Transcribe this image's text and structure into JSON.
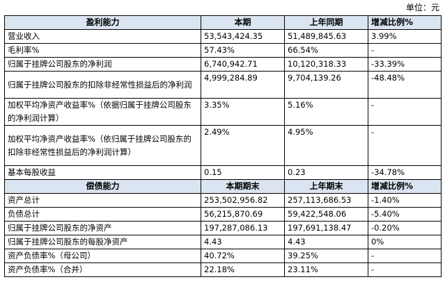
{
  "unit_label": "单位：元",
  "section1": {
    "headers": [
      "盈利能力",
      "本期",
      "上年同期",
      "增减比例%"
    ],
    "rows": [
      {
        "label": "营业收入",
        "current": "53,543,424.35",
        "previous": "51,489,845.63",
        "change": "3.99%"
      },
      {
        "label": "毛利率%",
        "current": "57.43%",
        "previous": "66.54%",
        "change": "-"
      },
      {
        "label": "归属于挂牌公司股东的净利润",
        "current": "6,740,942.71",
        "previous": "10,120,318.33",
        "change": "-33.39%"
      },
      {
        "label": "归属于挂牌公司股东的扣除非经常性损益后的净利润",
        "current": "4,999,284.89",
        "previous": "9,704,139.26",
        "change": "-48.48%"
      },
      {
        "label": "加权平均净资产收益率%（依据归属于挂牌公司股东的净利润计算）",
        "current": "3.35%",
        "previous": "5.16%",
        "change": "-"
      },
      {
        "label": "加权平均净资产收益率%（依归属于挂牌公司股东的扣除非经常性损益后的净利润计算）",
        "current": "2.49%",
        "previous": "4.95%",
        "change": "-"
      },
      {
        "label": "基本每股收益",
        "current": "0.15",
        "previous": "0.23",
        "change": "-34.78%"
      }
    ]
  },
  "section2": {
    "headers": [
      "偿债能力",
      "本期期末",
      "上年期末",
      "增减比例%"
    ],
    "rows": [
      {
        "label": "资产总计",
        "current": "253,502,956.82",
        "previous": "257,113,686.53",
        "change": "-1.40%"
      },
      {
        "label": "负债总计",
        "current": "56,215,870.69",
        "previous": "59,422,548.06",
        "change": "-5.40%"
      },
      {
        "label": "归属于挂牌公司股东的净资产",
        "current": "197,287,086.13",
        "previous": "197,691,138.47",
        "change": "-0.20%"
      },
      {
        "label": "归属于挂牌公司股东的每股净资产",
        "current": "4.43",
        "previous": "4.43",
        "change": "0%"
      },
      {
        "label": "资产负债率%（母公司）",
        "current": "40.72%",
        "previous": "39.25%",
        "change": "-"
      },
      {
        "label": "资产负债率%（合并）",
        "current": "22.18%",
        "previous": "23.11%",
        "change": "-"
      }
    ]
  }
}
